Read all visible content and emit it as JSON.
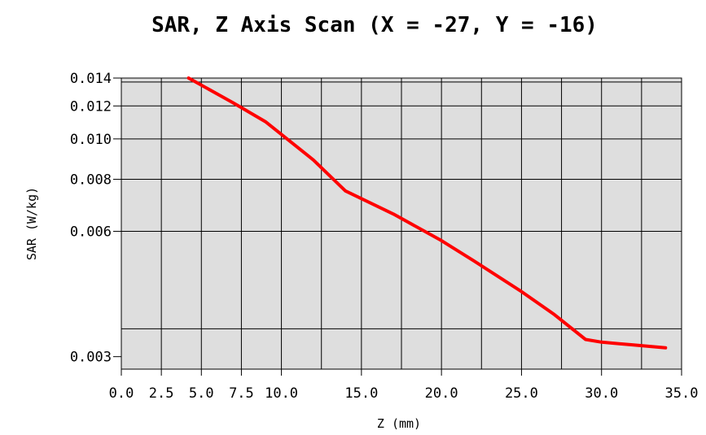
{
  "chart_data": {
    "type": "line",
    "title": "SAR, Z Axis Scan (X = -27, Y = -16)",
    "xlabel": "Z (mm)",
    "ylabel": "SAR (W/kg)",
    "y_scale": "log",
    "xlim": [
      0,
      35
    ],
    "ylim": [
      0.0028,
      0.014
    ],
    "grid": true,
    "x_ticks": [
      {
        "v": 0.0,
        "label": "0.0"
      },
      {
        "v": 2.5,
        "label": "2.5"
      },
      {
        "v": 5.0,
        "label": "5.0"
      },
      {
        "v": 7.5,
        "label": "7.5"
      },
      {
        "v": 10.0,
        "label": "10.0"
      },
      {
        "v": 15.0,
        "label": "15.0"
      },
      {
        "v": 20.0,
        "label": "20.0"
      },
      {
        "v": 25.0,
        "label": "25.0"
      },
      {
        "v": 30.0,
        "label": "30.0"
      },
      {
        "v": 35.0,
        "label": "35.0"
      }
    ],
    "y_ticks": [
      {
        "v": 0.014,
        "label": "0.014"
      },
      {
        "v": 0.012,
        "label": "0.012"
      },
      {
        "v": 0.01,
        "label": "0.010"
      },
      {
        "v": 0.008,
        "label": "0.008"
      },
      {
        "v": 0.006,
        "label": "0.006"
      },
      {
        "v": 0.003,
        "label": "0.003"
      }
    ],
    "x_grid": [
      2.5,
      5,
      7.5,
      10,
      12.5,
      15,
      17.5,
      20,
      22.5,
      25,
      27.5,
      30,
      32.5,
      35
    ],
    "y_grid": [
      0.0035,
      0.006,
      0.008,
      0.01,
      0.012,
      0.0137
    ],
    "series": [
      {
        "name": "",
        "color": "#ff0000",
        "x": [
          4.2,
          7,
          9,
          12,
          14,
          17,
          20,
          22,
          25,
          27,
          29,
          30,
          32,
          34
        ],
        "y": [
          0.014,
          0.0122,
          0.011,
          0.0089,
          0.0075,
          0.0066,
          0.0057,
          0.0051,
          0.0043,
          0.0038,
          0.0033,
          0.00325,
          0.0032,
          0.00315
        ]
      }
    ]
  }
}
